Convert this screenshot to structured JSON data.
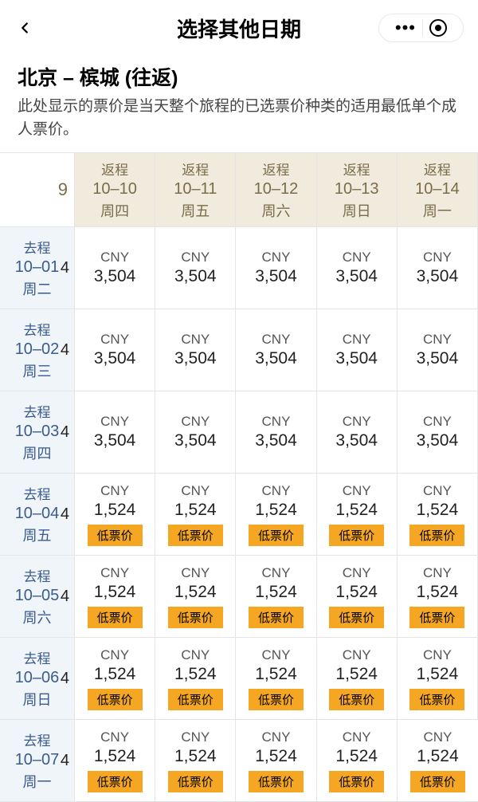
{
  "header": {
    "title": "选择其他日期"
  },
  "route": {
    "title": "北京 – 槟城 (往返)",
    "description": "此处显示的票价是当天整个旅程的已选票价种类的适用最低单个成人票价。"
  },
  "cornerEdge": "9",
  "edgeDigit": "4",
  "returnLabel": "返程",
  "departLabel": "去程",
  "currency": "CNY",
  "lowBadge": "低票价",
  "returnDates": [
    {
      "date": "10–10",
      "day": "周四"
    },
    {
      "date": "10–11",
      "day": "周五"
    },
    {
      "date": "10–12",
      "day": "周六"
    },
    {
      "date": "10–13",
      "day": "周日"
    },
    {
      "date": "10–14",
      "day": "周一"
    }
  ],
  "departRows": [
    {
      "date": "10–01",
      "day": "周二",
      "prices": [
        "3,504",
        "3,504",
        "3,504",
        "3,504",
        "3,504"
      ],
      "low": false
    },
    {
      "date": "10–02",
      "day": "周三",
      "prices": [
        "3,504",
        "3,504",
        "3,504",
        "3,504",
        "3,504"
      ],
      "low": false
    },
    {
      "date": "10–03",
      "day": "周四",
      "prices": [
        "3,504",
        "3,504",
        "3,504",
        "3,504",
        "3,504"
      ],
      "low": false
    },
    {
      "date": "10–04",
      "day": "周五",
      "prices": [
        "1,524",
        "1,524",
        "1,524",
        "1,524",
        "1,524"
      ],
      "low": true
    },
    {
      "date": "10–05",
      "day": "周六",
      "prices": [
        "1,524",
        "1,524",
        "1,524",
        "1,524",
        "1,524"
      ],
      "low": true
    },
    {
      "date": "10–06",
      "day": "周日",
      "prices": [
        "1,524",
        "1,524",
        "1,524",
        "1,524",
        "1,524"
      ],
      "low": true
    },
    {
      "date": "10–07",
      "day": "周一",
      "prices": [
        "1,524",
        "1,524",
        "1,524",
        "1,524",
        "1,524"
      ],
      "low": true
    }
  ]
}
